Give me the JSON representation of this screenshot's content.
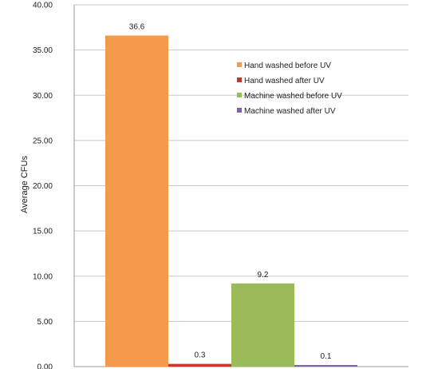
{
  "chart_data": {
    "type": "bar",
    "categories": [
      "Hand washed before UV",
      "Hand washed after UV",
      "Machine washed before UV",
      "Machine washed after UV"
    ],
    "values": [
      36.6,
      0.3,
      9.2,
      0.1
    ],
    "data_labels": [
      "36.6",
      "0.3",
      "9.2",
      "0.1"
    ],
    "colors": [
      "#f59a4c",
      "#c0392b",
      "#9bbb59",
      "#8064a2"
    ],
    "legend": {
      "placement": "top-right",
      "entries": [
        "Hand washed before UV",
        "Hand washed after UV",
        "Machine washed before UV",
        "Machine washed after UV"
      ]
    },
    "title": "",
    "xlabel": "",
    "ylabel": "Average CFUs",
    "ylim": [
      0,
      40
    ],
    "yticks": [
      0,
      5,
      10,
      15,
      20,
      25,
      30,
      35,
      40
    ],
    "ytick_labels": [
      "0.00",
      "5.00",
      "10.00",
      "15.00",
      "20.00",
      "25.00",
      "30.00",
      "35.00",
      "40.00"
    ],
    "grid": "horizontal"
  }
}
